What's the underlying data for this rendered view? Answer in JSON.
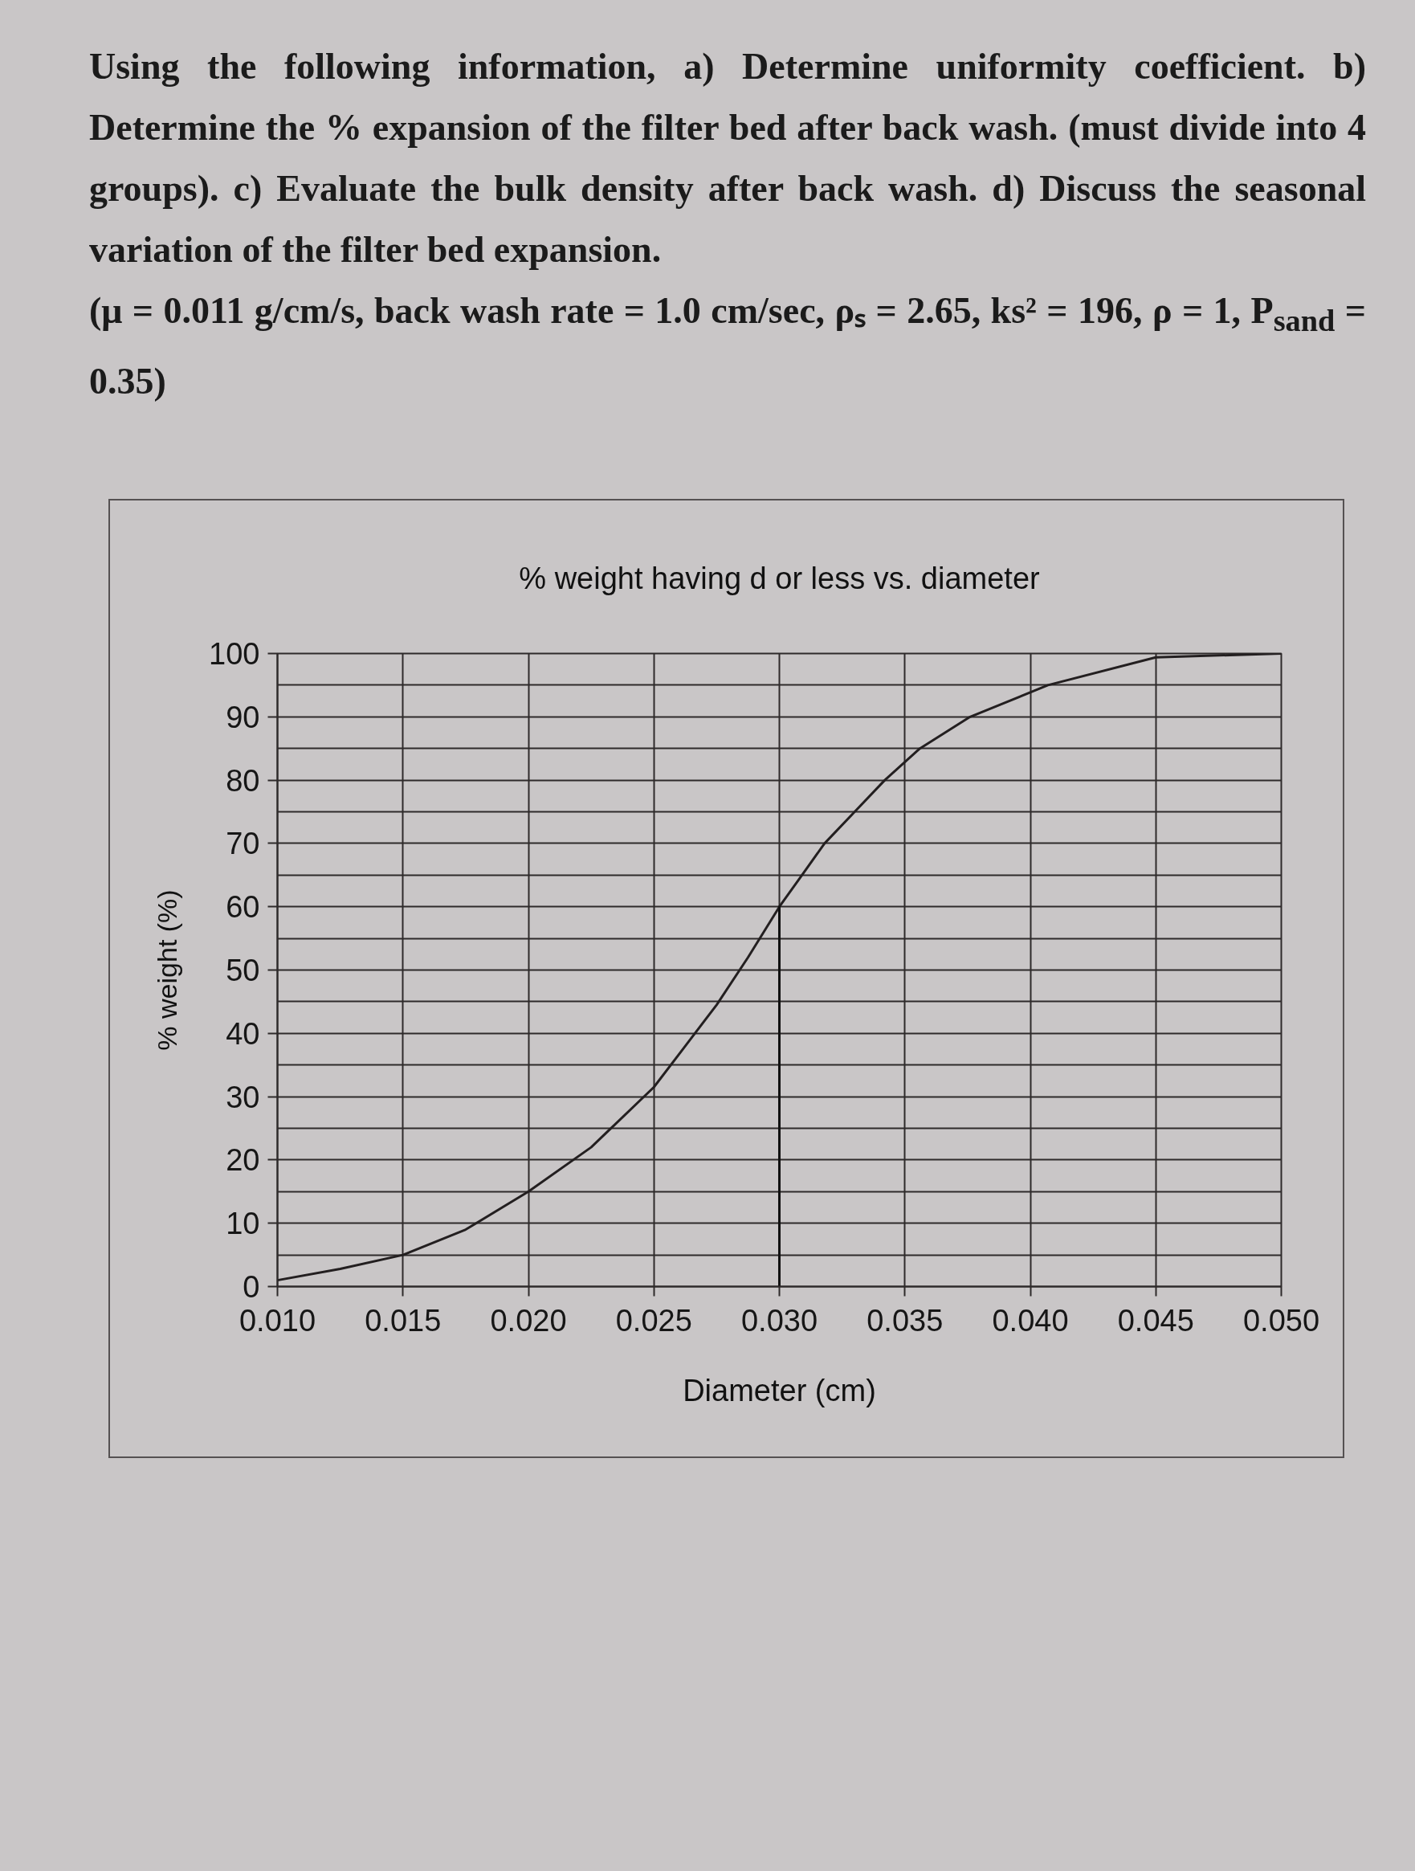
{
  "chart_data": {
    "type": "line",
    "title": "% weight having d or less vs. diameter",
    "xlabel": "Diameter (cm)",
    "ylabel": "% weight (%)",
    "annotations": [
      "Using the following information, a) Determine uniformity coefficient. b) Determine the % expansion of the filter bed after back wash. (must divide into 4 groups). c) Evaluate the bulk density after back wash. d) Discuss the seasonal variation of the filter bed expansion.",
      "(μ = 0.011 g/cm/s, back wash rate = 1.0 cm/sec, ρₛ = 2.65, ks² = 196, ρ = 1, P$_{sand}$ = 0.35)"
    ],
    "xlim": [
      0.01,
      0.05
    ],
    "ylim": [
      0,
      100
    ],
    "xticks": [
      {
        "value": 0.01,
        "label": "0.010"
      },
      {
        "value": 0.015,
        "label": "0.015"
      },
      {
        "value": 0.02,
        "label": "0.020"
      },
      {
        "value": 0.025,
        "label": "0.025"
      },
      {
        "value": 0.03,
        "label": "0.030"
      },
      {
        "value": 0.035,
        "label": "0.035"
      },
      {
        "value": 0.04,
        "label": "0.040"
      },
      {
        "value": 0.045,
        "label": "0.045"
      },
      {
        "value": 0.05,
        "label": "0.050"
      }
    ],
    "yticks": [
      0,
      {
        "value": 5,
        "label": null
      },
      10,
      {
        "value": 15,
        "label": null
      },
      20,
      {
        "value": 25,
        "label": null
      },
      30,
      {
        "value": 35,
        "label": null
      },
      40,
      {
        "value": 45,
        "label": null
      },
      50,
      {
        "value": 55,
        "label": null
      },
      60,
      {
        "value": 65,
        "label": null
      },
      70,
      {
        "value": 75,
        "label": null
      },
      80,
      {
        "value": 85,
        "label": null
      },
      90,
      {
        "value": 95,
        "label": null
      },
      100
    ],
    "grid": true,
    "series": [
      {
        "color": "#231f20",
        "x": [
          0.01,
          0.0125,
          0.015,
          0.0175,
          0.02,
          0.0225,
          0.025,
          0.02625,
          0.0275,
          0.02875,
          0.03,
          0.0309,
          0.0318,
          0.033,
          0.0342,
          0.0356,
          0.0376,
          0.0407,
          0.045,
          0.05
        ],
        "values": [
          1,
          2.8,
          5,
          9,
          15,
          22,
          31.5,
          38,
          44.5,
          52,
          60,
          65,
          70,
          75,
          80,
          85,
          90,
          95,
          99.4,
          100
        ]
      },
      {
        "color": "#111111",
        "x": [
          0.03,
          0.03
        ],
        "values": [
          0,
          60
        ]
      }
    ]
  }
}
